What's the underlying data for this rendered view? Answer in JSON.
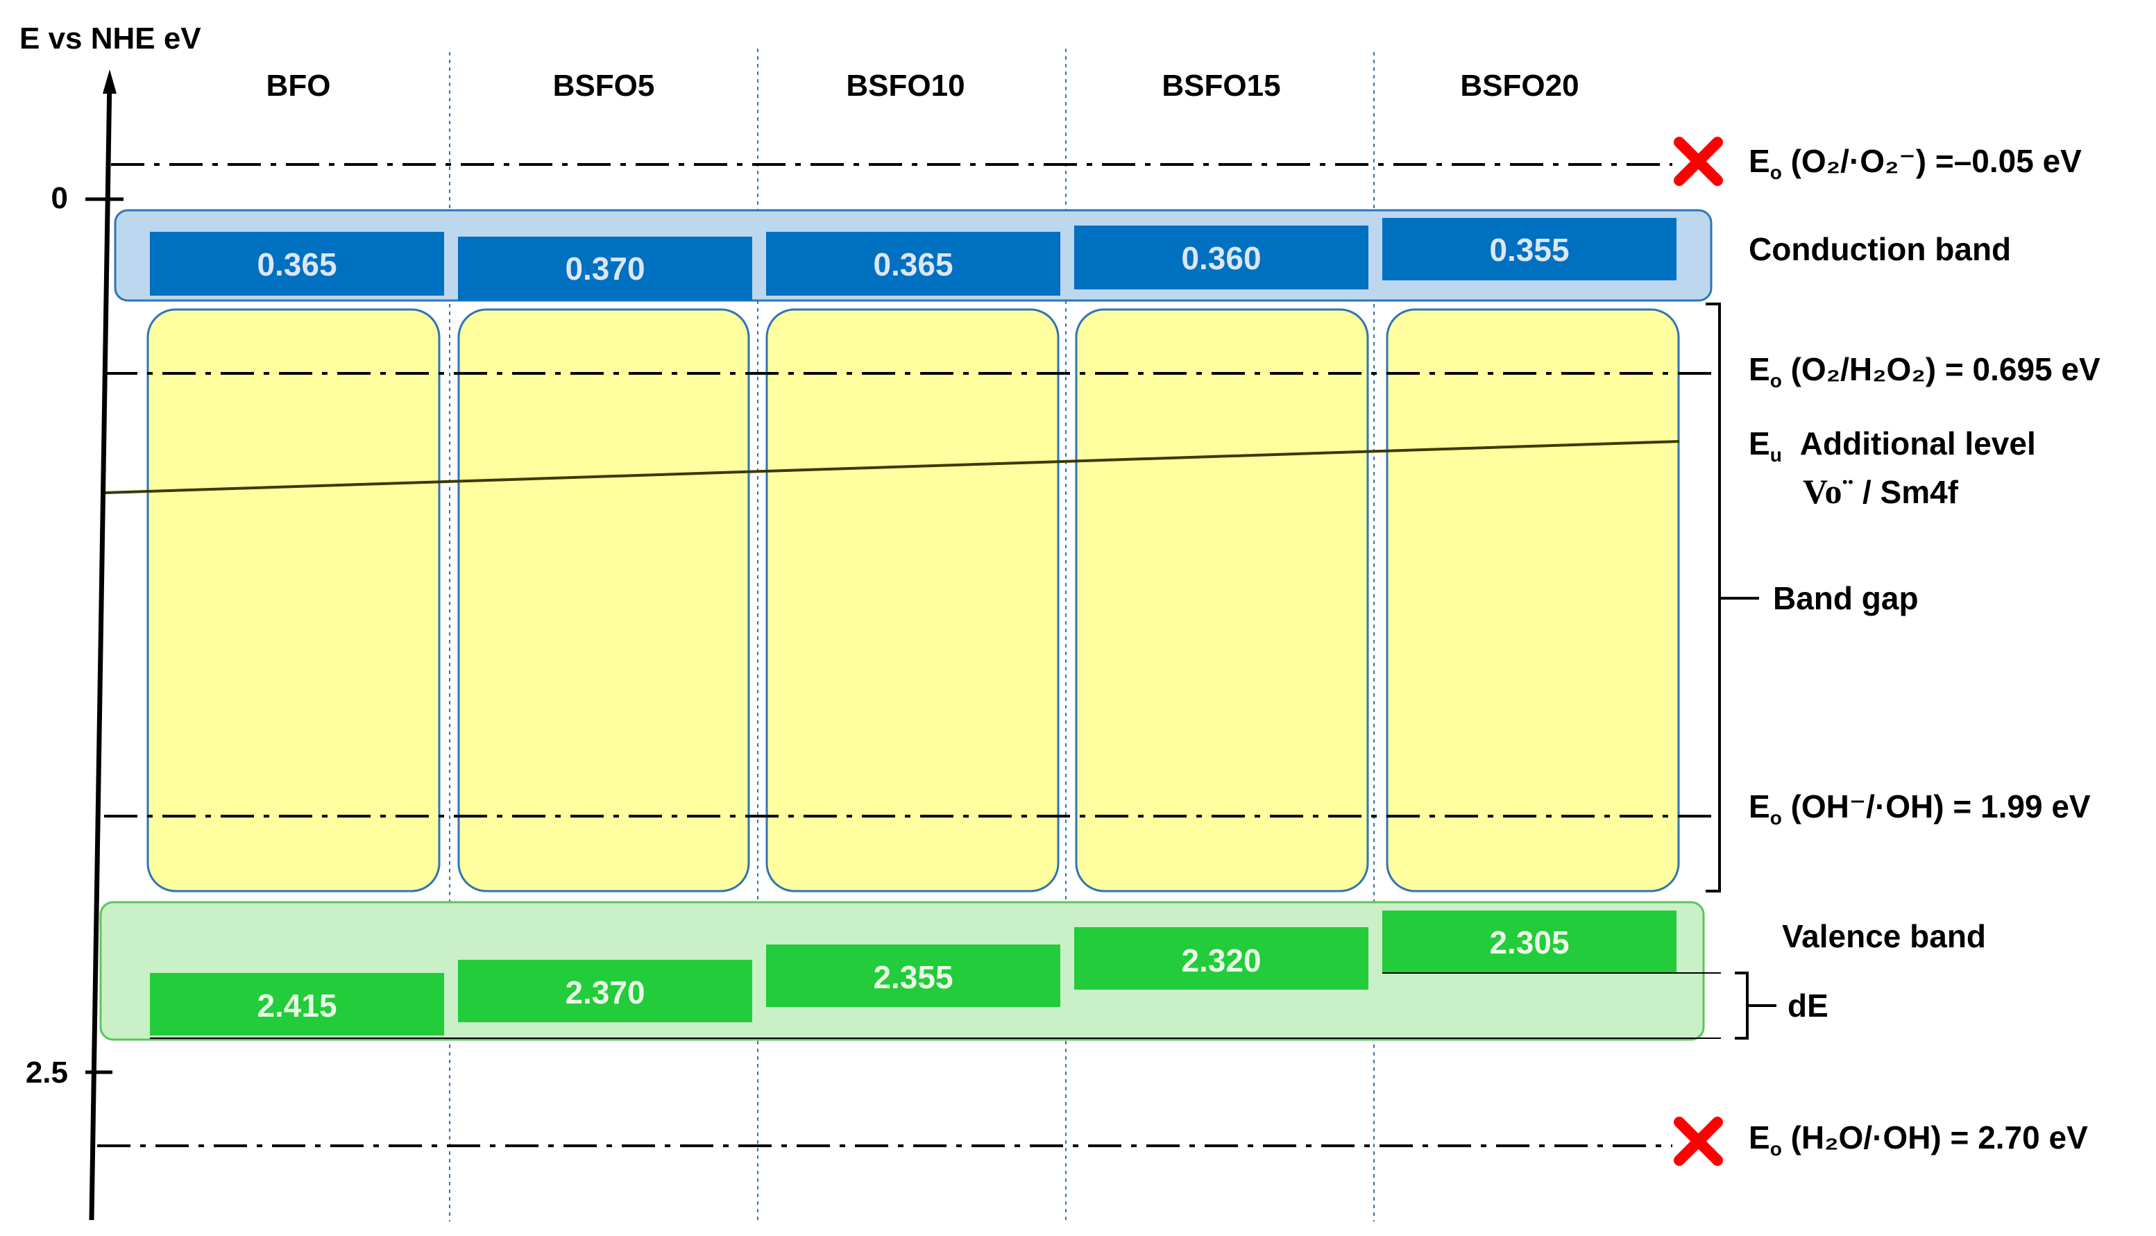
{
  "axis": {
    "title": "E vs NHE eV",
    "ticks": [
      {
        "value": 0,
        "label": "0"
      },
      {
        "value": 2.5,
        "label": "2.5"
      }
    ]
  },
  "samples": [
    {
      "name": "BFO",
      "cb": "0.365",
      "vb": "2.415"
    },
    {
      "name": "BSFO5",
      "cb": "0.370",
      "vb": "2.370"
    },
    {
      "name": "BSFO10",
      "cb": "0.365",
      "vb": "2.355"
    },
    {
      "name": "BSFO15",
      "cb": "0.360",
      "vb": "2.320"
    },
    {
      "name": "BSFO20",
      "cb": "0.355",
      "vb": "2.305"
    }
  ],
  "potentials": [
    {
      "E": "E",
      "sub": "o",
      "couple": "(O₂/·O₂⁻)",
      "value_text": "=–0.05 eV",
      "value": -0.05,
      "not_reachable": true
    },
    {
      "E": "E",
      "sub": "o",
      "couple": "(O₂/H₂O₂)",
      "value_text": "= 0.695 eV",
      "value": 0.695,
      "not_reachable": false
    },
    {
      "E": "E",
      "sub": "o",
      "couple": "(OH⁻/·OH)",
      "value_text": "= 1.99 eV",
      "value": 1.99,
      "not_reachable": false
    },
    {
      "E": "E",
      "sub": "o",
      "couple": "(H₂O/·OH)",
      "value_text": "= 2.70 eV",
      "value": 2.7,
      "not_reachable": true
    }
  ],
  "labels": {
    "conduction_band": "Conduction band",
    "valence_band": "Valence band",
    "band_gap": "Band gap",
    "additional_level_sym": "E",
    "additional_level_sub": "u",
    "additional_level": "Additional level",
    "vo_defect": "Vo¨",
    "sm4f": " / Sm4f",
    "de": "dE"
  },
  "colors": {
    "cb_band": "#0070c0",
    "cb_region": "#bdd7ee",
    "vb_band": "#22cc3a",
    "vb_region": "#c9f0c6",
    "gap_fill": "#ffff9f",
    "gap_border": "#2e75b6",
    "cross": "#ff0000"
  }
}
